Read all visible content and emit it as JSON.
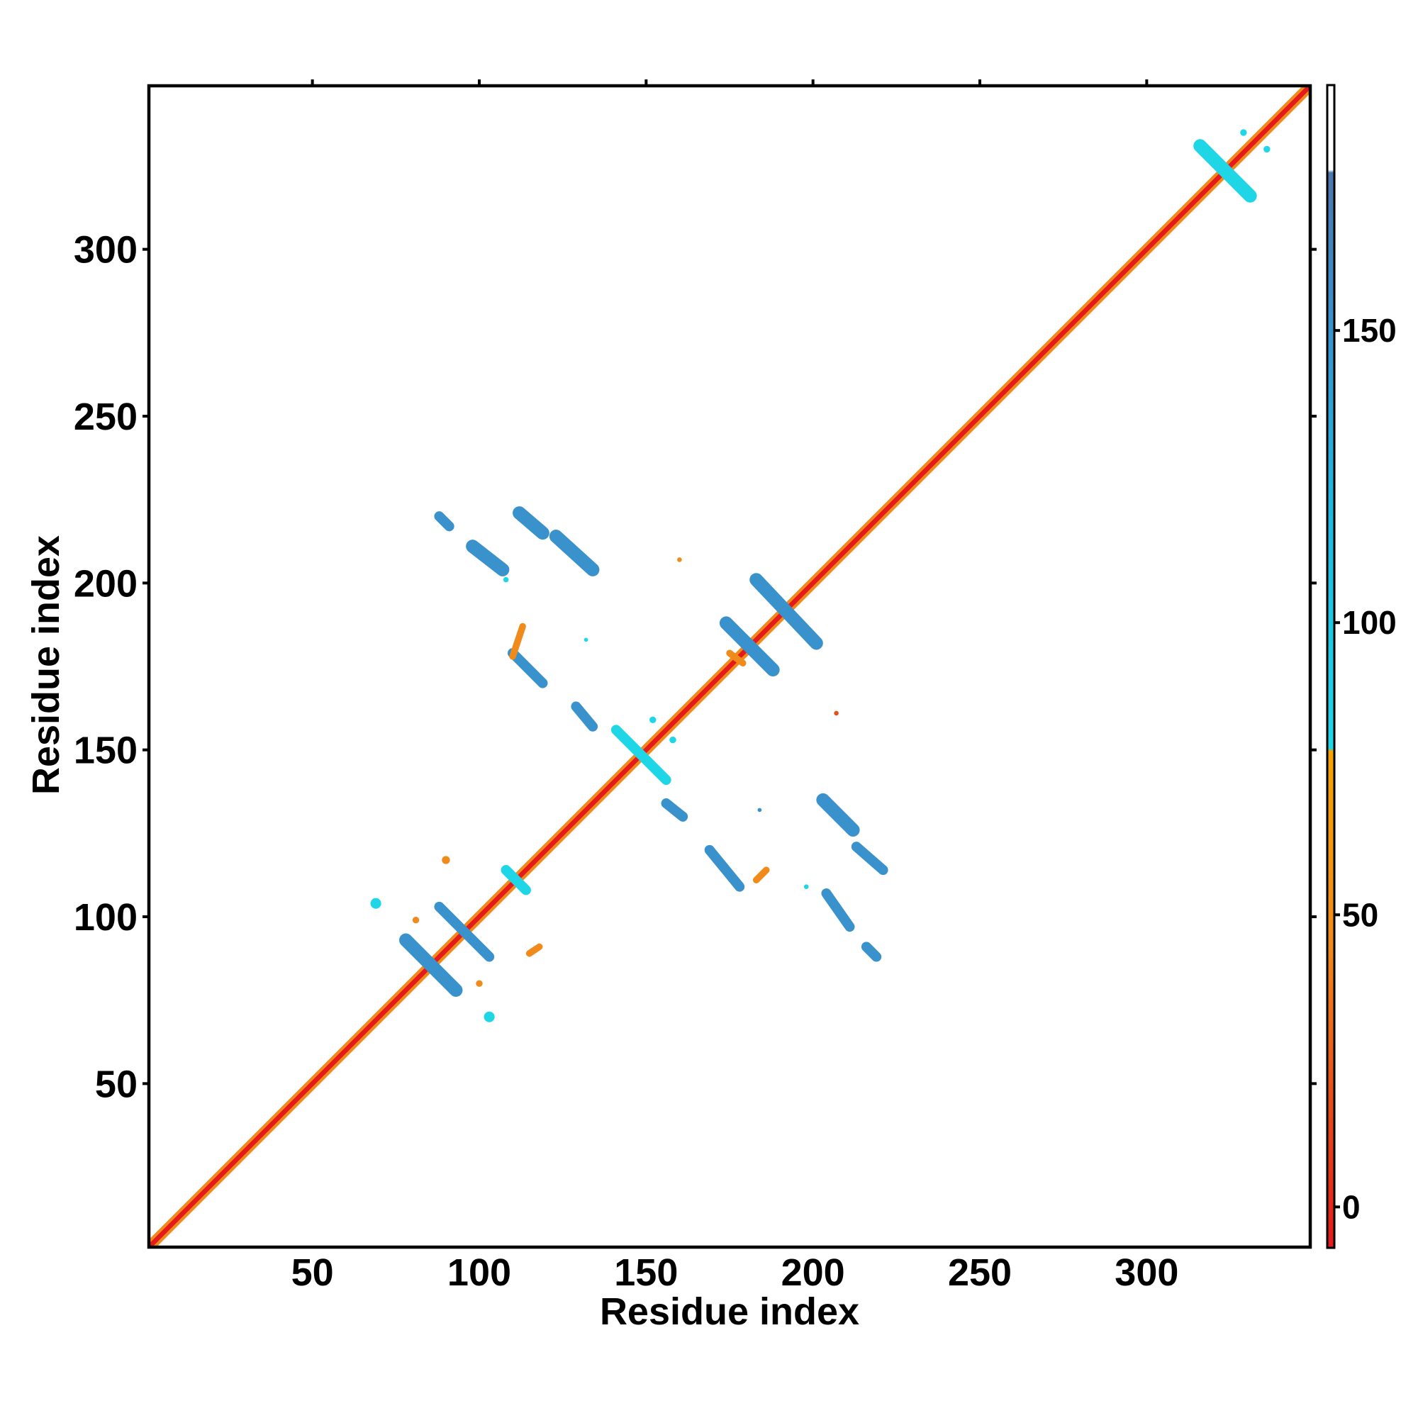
{
  "chart_data": {
    "type": "heatmap",
    "title": "",
    "xlabel": "Residue index",
    "ylabel": "Residue index",
    "xlim": [
      1,
      349
    ],
    "ylim": [
      1,
      349
    ],
    "x_ticks": [
      50,
      100,
      150,
      200,
      250,
      300
    ],
    "y_ticks": [
      50,
      100,
      150,
      200,
      250,
      300
    ],
    "colorbar": {
      "ticks": [
        0,
        50,
        100,
        150
      ],
      "range": [
        -7,
        192
      ],
      "stops": [
        {
          "value": -7,
          "color": "#e41a1c"
        },
        {
          "value": 20,
          "color": "#e6501b"
        },
        {
          "value": 45,
          "color": "#f08a1a"
        },
        {
          "value": 78,
          "color": "#f5a300"
        },
        {
          "value": 78.5,
          "color": "#1fd6e6"
        },
        {
          "value": 120,
          "color": "#1fb8de"
        },
        {
          "value": 150,
          "color": "#3a92cc"
        },
        {
          "value": 177,
          "color": "#4a78ad"
        },
        {
          "value": 177.5,
          "color": "#ffffff"
        },
        {
          "value": 192,
          "color": "#ffffff"
        }
      ]
    },
    "colors": {
      "diagonal": "#e41a1c",
      "near_diagonal": "#f08a1a",
      "mid_contact": "#1fd6e6",
      "far_contact": "#3a92cc"
    },
    "diagonal": {
      "from": 1,
      "to": 349
    },
    "segments": [
      {
        "x1": 88,
        "y1": 220,
        "x2": 91,
        "y2": 217,
        "w": 3,
        "color": "#3a92cc"
      },
      {
        "x1": 98,
        "y1": 211,
        "x2": 107,
        "y2": 204,
        "w": 4,
        "color": "#3a92cc"
      },
      {
        "x1": 112,
        "y1": 221,
        "x2": 119,
        "y2": 215,
        "w": 4,
        "color": "#3a92cc"
      },
      {
        "x1": 123,
        "y1": 214,
        "x2": 134,
        "y2": 204,
        "w": 4,
        "color": "#3a92cc"
      },
      {
        "x1": 110,
        "y1": 179,
        "x2": 119,
        "y2": 170,
        "w": 3,
        "color": "#3a92cc"
      },
      {
        "x1": 129,
        "y1": 163,
        "x2": 134,
        "y2": 157,
        "w": 3,
        "color": "#3a92cc"
      },
      {
        "x1": 174,
        "y1": 188,
        "x2": 188,
        "y2": 174,
        "w": 4,
        "color": "#3a92cc"
      },
      {
        "x1": 183,
        "y1": 201,
        "x2": 201,
        "y2": 182,
        "w": 4,
        "color": "#3a92cc"
      },
      {
        "x1": 156,
        "y1": 134,
        "x2": 161,
        "y2": 130,
        "w": 3,
        "color": "#3a92cc"
      },
      {
        "x1": 169,
        "y1": 120,
        "x2": 178,
        "y2": 109,
        "w": 3,
        "color": "#3a92cc"
      },
      {
        "x1": 203,
        "y1": 135,
        "x2": 212,
        "y2": 126,
        "w": 4,
        "color": "#3a92cc"
      },
      {
        "x1": 213,
        "y1": 121,
        "x2": 221,
        "y2": 114,
        "w": 3,
        "color": "#3a92cc"
      },
      {
        "x1": 204,
        "y1": 107,
        "x2": 211,
        "y2": 97,
        "w": 3,
        "color": "#3a92cc"
      },
      {
        "x1": 216,
        "y1": 91,
        "x2": 219,
        "y2": 88,
        "w": 3,
        "color": "#3a92cc"
      },
      {
        "x1": 78,
        "y1": 93,
        "x2": 93,
        "y2": 78,
        "w": 4,
        "color": "#3a92cc"
      },
      {
        "x1": 88,
        "y1": 103,
        "x2": 103,
        "y2": 88,
        "w": 3,
        "color": "#3a92cc"
      },
      {
        "x1": 316,
        "y1": 331,
        "x2": 331,
        "y2": 316,
        "w": 4,
        "color": "#1fd6e6"
      },
      {
        "x1": 141,
        "y1": 156,
        "x2": 156,
        "y2": 141,
        "w": 3,
        "color": "#1fd6e6"
      },
      {
        "x1": 108,
        "y1": 114,
        "x2": 114,
        "y2": 108,
        "w": 3,
        "color": "#1fd6e6"
      },
      {
        "x1": 175,
        "y1": 179,
        "x2": 179,
        "y2": 176,
        "w": 2,
        "color": "#f08a1a"
      },
      {
        "x1": 183,
        "y1": 111,
        "x2": 186,
        "y2": 114,
        "w": 2,
        "color": "#f08a1a"
      },
      {
        "x1": 110,
        "y1": 178,
        "x2": 113,
        "y2": 187,
        "w": 2,
        "color": "#f08a1a"
      },
      {
        "x1": 115,
        "y1": 89,
        "x2": 118,
        "y2": 91,
        "w": 2,
        "color": "#f08a1a"
      }
    ],
    "blobs": [
      {
        "x": 69,
        "y": 104,
        "r": 1.6,
        "color": "#1fd6e6"
      },
      {
        "x": 103,
        "y": 70,
        "r": 1.6,
        "color": "#1fd6e6"
      },
      {
        "x": 90,
        "y": 117,
        "r": 1.2,
        "color": "#f08a1a"
      },
      {
        "x": 81,
        "y": 99,
        "r": 1.0,
        "color": "#f08a1a"
      },
      {
        "x": 100,
        "y": 80,
        "r": 1.0,
        "color": "#f08a1a"
      },
      {
        "x": 108,
        "y": 201,
        "r": 0.8,
        "color": "#1fd6e6"
      },
      {
        "x": 132,
        "y": 183,
        "r": 0.6,
        "color": "#1fd6e6"
      },
      {
        "x": 184,
        "y": 132,
        "r": 0.6,
        "color": "#3a92cc"
      },
      {
        "x": 207,
        "y": 161,
        "r": 0.7,
        "color": "#e6501b"
      },
      {
        "x": 160,
        "y": 207,
        "r": 0.7,
        "color": "#f08a1a"
      },
      {
        "x": 198,
        "y": 109,
        "r": 0.7,
        "color": "#1fd6e6"
      },
      {
        "x": 152,
        "y": 159,
        "r": 1.0,
        "color": "#1fd6e6"
      },
      {
        "x": 158,
        "y": 153,
        "r": 1.0,
        "color": "#1fd6e6"
      },
      {
        "x": 336,
        "y": 330,
        "r": 1.0,
        "color": "#1fd6e6"
      },
      {
        "x": 329,
        "y": 335,
        "r": 1.0,
        "color": "#1fd6e6"
      }
    ]
  }
}
